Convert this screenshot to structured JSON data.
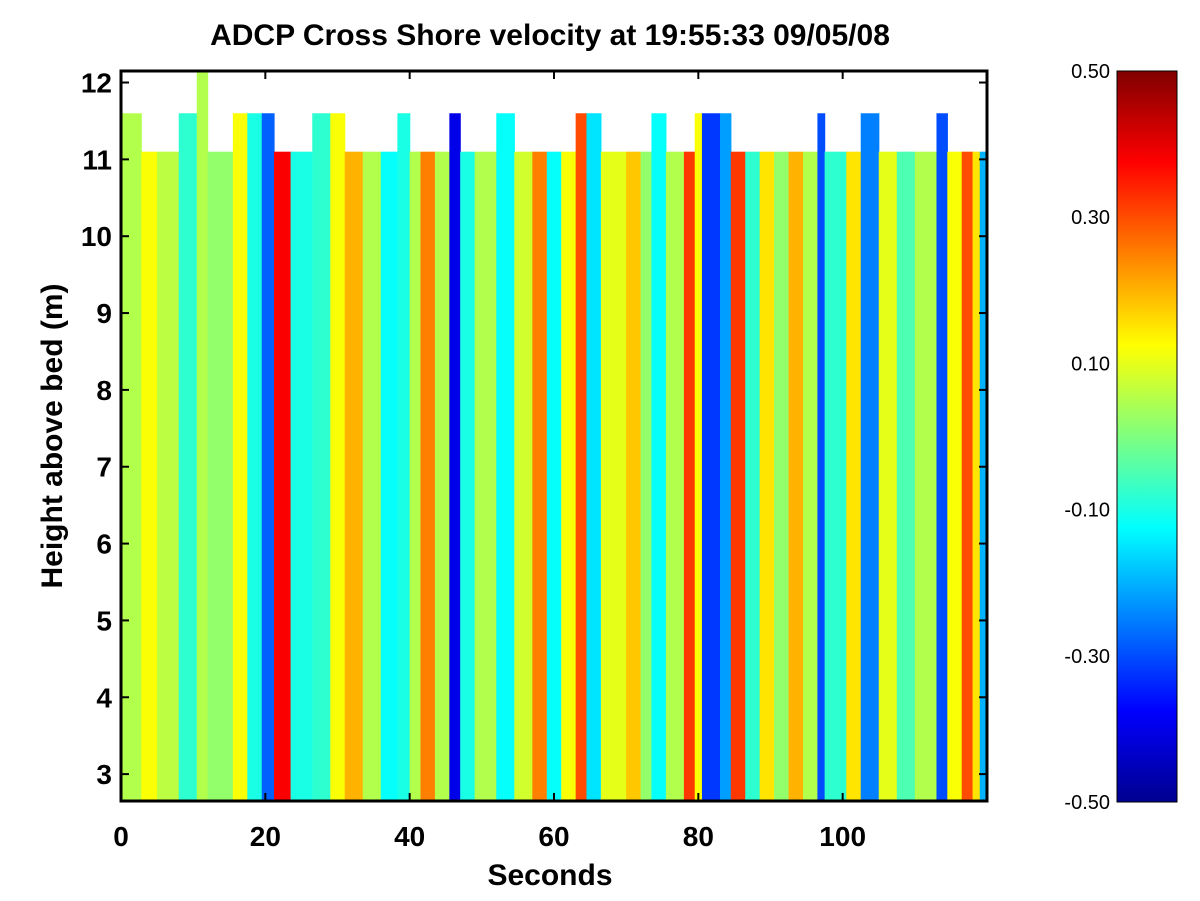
{
  "chart_data": {
    "type": "heatmap",
    "title": "ADCP Cross Shore velocity at 19:55:33 09/05/08",
    "xlabel": "Seconds",
    "ylabel": "Height above bed (m)",
    "xlim": [
      0,
      120
    ],
    "ylim": [
      2.65,
      12.15
    ],
    "x_ticks": [
      0,
      20,
      40,
      60,
      80,
      100
    ],
    "y_ticks": [
      3,
      4,
      5,
      6,
      7,
      8,
      9,
      10,
      11,
      12
    ],
    "colorbar": {
      "colormap": "jet",
      "range": [
        -0.5,
        0.5
      ],
      "ticks": [
        "0.50",
        "0.30",
        "0.10",
        "-0.10",
        "-0.30",
        "-0.50"
      ]
    },
    "grid": false,
    "bin_bottom_height": 2.65,
    "lower_surface_height": 11.1,
    "upper_surface_height": 11.6,
    "columns": [
      {
        "x0": 0,
        "x1": 2.8,
        "v": 0.05,
        "top": 11.6
      },
      {
        "x0": 2.8,
        "x1": 5,
        "v": 0.12,
        "top": 11.1
      },
      {
        "x0": 5,
        "x1": 8,
        "v": 0.06,
        "top": 11.1
      },
      {
        "x0": 8,
        "x1": 10.5,
        "v": -0.08,
        "top": 11.6
      },
      {
        "x0": 10.5,
        "x1": 12,
        "v": 0.05,
        "top": 12.15
      },
      {
        "x0": 12,
        "x1": 15.5,
        "v": 0.02,
        "top": 11.1
      },
      {
        "x0": 15.5,
        "x1": 17.5,
        "v": 0.12,
        "top": 11.6
      },
      {
        "x0": 17.5,
        "x1": 19.5,
        "v": -0.1,
        "top": 11.6
      },
      {
        "x0": 19.5,
        "x1": 21.2,
        "v": -0.28,
        "top": 11.6
      },
      {
        "x0": 21.2,
        "x1": 23.5,
        "v": 0.38,
        "top": 11.1
      },
      {
        "x0": 23.5,
        "x1": 26.5,
        "v": -0.1,
        "top": 11.1
      },
      {
        "x0": 26.5,
        "x1": 29,
        "v": -0.08,
        "top": 11.6
      },
      {
        "x0": 29,
        "x1": 31,
        "v": 0.12,
        "top": 11.6
      },
      {
        "x0": 31,
        "x1": 33.5,
        "v": 0.2,
        "top": 11.1
      },
      {
        "x0": 33.5,
        "x1": 36,
        "v": 0.05,
        "top": 11.1
      },
      {
        "x0": 36,
        "x1": 38.3,
        "v": -0.12,
        "top": 11.1
      },
      {
        "x0": 38.3,
        "x1": 40,
        "v": -0.1,
        "top": 11.6
      },
      {
        "x0": 40,
        "x1": 41.5,
        "v": 0.05,
        "top": 11.1
      },
      {
        "x0": 41.5,
        "x1": 43.5,
        "v": 0.25,
        "top": 11.1
      },
      {
        "x0": 43.5,
        "x1": 45.5,
        "v": 0.05,
        "top": 11.1
      },
      {
        "x0": 45.5,
        "x1": 47,
        "v": -0.4,
        "top": 11.6
      },
      {
        "x0": 47,
        "x1": 49,
        "v": -0.1,
        "top": 11.1
      },
      {
        "x0": 49,
        "x1": 52,
        "v": 0.05,
        "top": 11.1
      },
      {
        "x0": 52,
        "x1": 54.5,
        "v": -0.12,
        "top": 11.6
      },
      {
        "x0": 54.5,
        "x1": 57,
        "v": 0.08,
        "top": 11.1
      },
      {
        "x0": 57,
        "x1": 59,
        "v": 0.25,
        "top": 11.1
      },
      {
        "x0": 59,
        "x1": 61,
        "v": -0.12,
        "top": 11.1
      },
      {
        "x0": 61,
        "x1": 63,
        "v": 0.12,
        "top": 11.1
      },
      {
        "x0": 63,
        "x1": 64.5,
        "v": 0.3,
        "top": 11.6
      },
      {
        "x0": 64.5,
        "x1": 66.5,
        "v": -0.15,
        "top": 11.6
      },
      {
        "x0": 66.5,
        "x1": 70,
        "v": 0.1,
        "top": 11.1
      },
      {
        "x0": 70,
        "x1": 72,
        "v": 0.18,
        "top": 11.1
      },
      {
        "x0": 72,
        "x1": 73.5,
        "v": 0.02,
        "top": 11.1
      },
      {
        "x0": 73.5,
        "x1": 75.5,
        "v": -0.12,
        "top": 11.6
      },
      {
        "x0": 75.5,
        "x1": 78,
        "v": 0.05,
        "top": 11.1
      },
      {
        "x0": 78,
        "x1": 79.5,
        "v": 0.32,
        "top": 11.1
      },
      {
        "x0": 79.5,
        "x1": 80.5,
        "v": 0.12,
        "top": 11.6
      },
      {
        "x0": 80.5,
        "x1": 83,
        "v": -0.32,
        "top": 11.6
      },
      {
        "x0": 83,
        "x1": 84.5,
        "v": -0.22,
        "top": 11.6
      },
      {
        "x0": 84.5,
        "x1": 86.5,
        "v": 0.32,
        "top": 11.1
      },
      {
        "x0": 86.5,
        "x1": 88.5,
        "v": -0.08,
        "top": 11.1
      },
      {
        "x0": 88.5,
        "x1": 90.5,
        "v": 0.15,
        "top": 11.1
      },
      {
        "x0": 90.5,
        "x1": 92.5,
        "v": 0.02,
        "top": 11.1
      },
      {
        "x0": 92.5,
        "x1": 94.5,
        "v": 0.2,
        "top": 11.1
      },
      {
        "x0": 94.5,
        "x1": 96.5,
        "v": 0.05,
        "top": 11.1
      },
      {
        "x0": 96.5,
        "x1": 97.5,
        "v": -0.3,
        "top": 11.6
      },
      {
        "x0": 97.5,
        "x1": 100.5,
        "v": -0.08,
        "top": 11.1
      },
      {
        "x0": 100.5,
        "x1": 102.5,
        "v": 0.15,
        "top": 11.1
      },
      {
        "x0": 102.5,
        "x1": 105,
        "v": -0.25,
        "top": 11.6
      },
      {
        "x0": 105,
        "x1": 107.5,
        "v": 0.1,
        "top": 11.1
      },
      {
        "x0": 107.5,
        "x1": 110,
        "v": -0.05,
        "top": 11.1
      },
      {
        "x0": 110,
        "x1": 113,
        "v": 0.05,
        "top": 11.1
      },
      {
        "x0": 113,
        "x1": 114.5,
        "v": -0.3,
        "top": 11.6
      },
      {
        "x0": 114.5,
        "x1": 116.5,
        "v": 0.12,
        "top": 11.1
      },
      {
        "x0": 116.5,
        "x1": 118,
        "v": 0.3,
        "top": 11.1
      },
      {
        "x0": 118,
        "x1": 119,
        "v": 0.15,
        "top": 11.1
      },
      {
        "x0": 119,
        "x1": 120,
        "v": -0.2,
        "top": 11.1
      }
    ]
  }
}
